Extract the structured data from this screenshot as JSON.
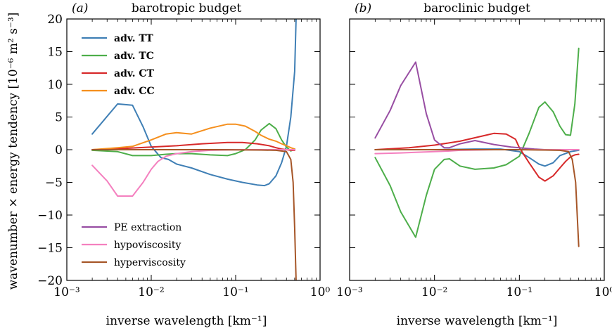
{
  "figure": {
    "ylabel": "wavenumber × energy tendency [10⁻⁶ m² s⁻³]",
    "xlabel": "inverse wavelength [km⁻¹]"
  },
  "x_tick_labels": {
    "1e-3": "10⁻³",
    "1e-2": "10⁻²",
    "1e-1": "10⁻¹",
    "1e0": "10⁰"
  },
  "y_tick_labels": [
    "20",
    "15",
    "10",
    "5",
    "0",
    "−5",
    "−10",
    "−15",
    "−20"
  ],
  "chart_data": [
    {
      "type": "line",
      "panel_tag": "(a)",
      "title": "barotropic budget",
      "xlabel": "inverse wavelength [km⁻¹]",
      "ylabel": "wavenumber × energy tendency [10⁻⁶ m² s⁻³]",
      "xscale": "log",
      "xlim": [
        0.001,
        1
      ],
      "ylim": [
        -20,
        20
      ],
      "legend_placement": "top-left and bottom-left",
      "series": [
        {
          "name": "adv. TT",
          "color": "#3f7fb5",
          "legend_bold": true,
          "legend_group": "top",
          "x": [
            0.002,
            0.004,
            0.006,
            0.008,
            0.01,
            0.013,
            0.016,
            0.02,
            0.03,
            0.05,
            0.08,
            0.12,
            0.18,
            0.22,
            0.25,
            0.3,
            0.35,
            0.4,
            0.45,
            0.5,
            0.52
          ],
          "y": [
            2.4,
            7.0,
            6.8,
            3.5,
            0.5,
            -1.2,
            -1.5,
            -2.2,
            -2.8,
            -3.8,
            -4.5,
            -5.0,
            -5.4,
            -5.5,
            -5.2,
            -4.0,
            -2.0,
            0.5,
            5.0,
            12.0,
            20.0
          ]
        },
        {
          "name": "adv. TC",
          "color": "#4dae4a",
          "legend_bold": true,
          "legend_group": "top",
          "x": [
            0.002,
            0.004,
            0.006,
            0.01,
            0.015,
            0.02,
            0.03,
            0.05,
            0.08,
            0.1,
            0.13,
            0.17,
            0.2,
            0.25,
            0.3,
            0.35,
            0.4,
            0.45,
            0.5
          ],
          "y": [
            -0.1,
            -0.3,
            -0.9,
            -0.9,
            -0.7,
            -0.6,
            -0.6,
            -0.8,
            -0.9,
            -0.6,
            0.0,
            1.5,
            3.0,
            4.0,
            3.2,
            1.5,
            0.4,
            -0.2,
            0.1
          ]
        },
        {
          "name": "adv. CT",
          "color": "#d7292a",
          "legend_bold": true,
          "legend_group": "top",
          "x": [
            0.002,
            0.005,
            0.01,
            0.02,
            0.04,
            0.08,
            0.12,
            0.18,
            0.25,
            0.3,
            0.35,
            0.4,
            0.45,
            0.5
          ],
          "y": [
            0.0,
            0.2,
            0.4,
            0.6,
            0.9,
            1.1,
            1.1,
            0.9,
            0.6,
            0.3,
            0.1,
            0.0,
            -0.1,
            -0.1
          ]
        },
        {
          "name": "adv. CC",
          "color": "#f58f1d",
          "legend_bold": true,
          "legend_group": "top",
          "x": [
            0.002,
            0.004,
            0.006,
            0.01,
            0.015,
            0.02,
            0.03,
            0.05,
            0.08,
            0.1,
            0.13,
            0.17,
            0.2,
            0.25,
            0.3,
            0.35,
            0.4,
            0.45,
            0.5
          ],
          "y": [
            0.0,
            0.3,
            0.5,
            1.5,
            2.4,
            2.6,
            2.4,
            3.3,
            3.9,
            3.9,
            3.6,
            2.8,
            2.2,
            1.6,
            1.3,
            0.9,
            0.6,
            0.3,
            0.1
          ]
        },
        {
          "name": "PE extraction",
          "color": "#984ea3",
          "legend_bold": false,
          "legend_group": "bottom",
          "x": [
            0.002,
            0.01,
            0.1,
            0.5
          ],
          "y": [
            0.0,
            0.0,
            0.0,
            0.0
          ]
        },
        {
          "name": "hypoviscosity",
          "color": "#f480bf",
          "legend_bold": false,
          "legend_group": "bottom",
          "x": [
            0.002,
            0.003,
            0.004,
            0.006,
            0.008,
            0.01,
            0.012,
            0.015,
            0.02,
            0.03,
            0.05,
            0.1,
            0.3,
            0.5
          ],
          "y": [
            -2.4,
            -4.8,
            -7.1,
            -7.1,
            -5.0,
            -3.0,
            -1.8,
            -1.0,
            -0.6,
            -0.3,
            -0.1,
            0.0,
            0.0,
            0.0
          ]
        },
        {
          "name": "hyperviscosity",
          "color": "#a65628",
          "legend_bold": false,
          "legend_group": "bottom",
          "x": [
            0.002,
            0.01,
            0.05,
            0.1,
            0.2,
            0.3,
            0.4,
            0.45,
            0.48,
            0.5,
            0.52
          ],
          "y": [
            0.0,
            0.0,
            0.0,
            -0.02,
            -0.05,
            -0.1,
            -0.3,
            -1.5,
            -5.0,
            -12.0,
            -20.0
          ]
        }
      ]
    },
    {
      "type": "line",
      "panel_tag": "(b)",
      "title": "baroclinic budget",
      "xlabel": "inverse wavelength [km⁻¹]",
      "xscale": "log",
      "xlim": [
        0.001,
        1
      ],
      "ylim": [
        -20,
        20
      ],
      "series": [
        {
          "name": "adv. TT",
          "color": "#3f7fb5",
          "x": [
            0.002,
            0.01,
            0.03,
            0.06,
            0.1,
            0.13,
            0.17,
            0.2,
            0.25,
            0.3,
            0.4,
            0.5
          ],
          "y": [
            0.0,
            0.0,
            0.1,
            0.1,
            -0.3,
            -1.2,
            -2.2,
            -2.5,
            -2.0,
            -0.9,
            -0.3,
            -0.1
          ]
        },
        {
          "name": "adv. TC",
          "color": "#4dae4a",
          "x": [
            0.002,
            0.003,
            0.004,
            0.006,
            0.008,
            0.01,
            0.013,
            0.015,
            0.02,
            0.03,
            0.05,
            0.07,
            0.1,
            0.13,
            0.17,
            0.2,
            0.25,
            0.3,
            0.35,
            0.4,
            0.45,
            0.5
          ],
          "y": [
            -1.2,
            -5.5,
            -9.5,
            -13.4,
            -7.0,
            -3.0,
            -1.5,
            -1.4,
            -2.5,
            -3.0,
            -2.8,
            -2.3,
            -1.0,
            2.5,
            6.5,
            7.3,
            5.8,
            3.6,
            2.3,
            2.2,
            7.0,
            15.5
          ]
        },
        {
          "name": "adv. CT",
          "color": "#d7292a",
          "x": [
            0.002,
            0.005,
            0.01,
            0.02,
            0.04,
            0.05,
            0.07,
            0.09,
            0.1,
            0.13,
            0.17,
            0.2,
            0.25,
            0.3,
            0.35,
            0.4,
            0.45,
            0.5
          ],
          "y": [
            0.0,
            0.3,
            0.7,
            1.3,
            2.2,
            2.5,
            2.4,
            1.6,
            0.3,
            -2.0,
            -4.2,
            -4.8,
            -4.0,
            -2.8,
            -1.8,
            -1.1,
            -0.8,
            -0.7
          ]
        },
        {
          "name": "adv. CC",
          "color": "#f58f1d",
          "x": [
            0.002,
            0.01,
            0.05,
            0.1,
            0.2,
            0.3,
            0.5
          ],
          "y": [
            0.0,
            0.0,
            0.0,
            0.0,
            0.0,
            0.0,
            0.0
          ]
        },
        {
          "name": "PE extraction",
          "color": "#984ea3",
          "x": [
            0.002,
            0.003,
            0.004,
            0.006,
            0.008,
            0.01,
            0.013,
            0.015,
            0.02,
            0.03,
            0.05,
            0.08,
            0.1,
            0.15,
            0.2,
            0.3,
            0.5
          ],
          "y": [
            1.8,
            6.0,
            9.8,
            13.4,
            5.5,
            1.5,
            0.3,
            0.3,
            0.9,
            1.4,
            0.8,
            0.4,
            0.3,
            0.1,
            0.0,
            0.0,
            0.0
          ]
        },
        {
          "name": "hypoviscosity",
          "color": "#f480bf",
          "x": [
            0.002,
            0.004,
            0.006,
            0.01,
            0.015,
            0.02,
            0.03,
            0.05,
            0.1,
            0.5
          ],
          "y": [
            -0.6,
            -0.5,
            -0.4,
            -0.3,
            -0.2,
            -0.1,
            -0.05,
            0.0,
            0.0,
            0.0
          ]
        },
        {
          "name": "hyperviscosity",
          "color": "#a65628",
          "x": [
            0.002,
            0.01,
            0.05,
            0.1,
            0.2,
            0.3,
            0.38,
            0.42,
            0.46,
            0.5
          ],
          "y": [
            0.0,
            0.0,
            0.0,
            0.0,
            -0.05,
            -0.1,
            -0.3,
            -1.5,
            -5.0,
            -14.8
          ]
        }
      ]
    }
  ]
}
